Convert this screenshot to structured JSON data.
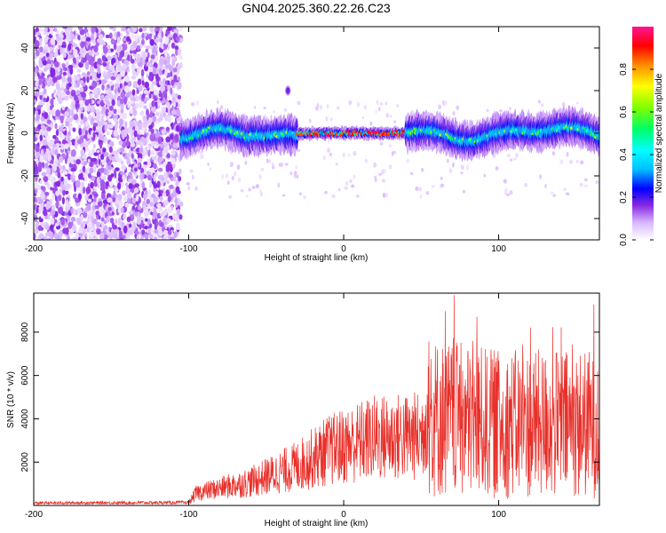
{
  "title": "GN04.2025.360.22.26.C23",
  "chart_data": [
    {
      "type": "heatmap",
      "xlabel": "Height of straight line (km)",
      "ylabel": "Frequency (Hz)",
      "xlim": [
        -200,
        165
      ],
      "ylim": [
        -50,
        50
      ],
      "xticks": [
        -200,
        -100,
        0,
        100
      ],
      "yticks": [
        -40,
        -20,
        0,
        20,
        40
      ],
      "colorbar": {
        "label": "Normalized spectral amplitude",
        "range": [
          0.0,
          1.0
        ],
        "ticks": [
          0.0,
          0.2,
          0.4,
          0.6,
          0.8
        ],
        "tick_labels": [
          "0.0",
          "0.2",
          "0.4",
          "0.6",
          "0.8"
        ],
        "stops": [
          "#ffffff",
          "#d9b8ff",
          "#8a2be2",
          "#0000ff",
          "#00bfff",
          "#00ffff",
          "#00ff66",
          "#7fff00",
          "#ffff00",
          "#ff8c00",
          "#ff0000",
          "#ff1493"
        ]
      },
      "regions": [
        {
          "description": "broadband noise",
          "x_range": [
            -200,
            -105
          ],
          "freq_range": [
            -50,
            50
          ],
          "amplitude": 0.15
        },
        {
          "description": "signal band",
          "x_range": [
            -105,
            165
          ],
          "freq_center": 0,
          "freq_halfwidth": 5,
          "amplitude_peak": 0.95,
          "strong_x_range": [
            -30,
            40
          ]
        }
      ],
      "grid": false
    },
    {
      "type": "line",
      "xlabel": "Height of straight line (km)",
      "ylabel": "SNR (10 * v/v)",
      "xlim": [
        -200,
        165
      ],
      "ylim": [
        0,
        9800
      ],
      "xticks": [
        -200,
        -100,
        0,
        100
      ],
      "yticks": [
        2000,
        4000,
        6000,
        8000
      ],
      "color": "#e8302a",
      "envelope": [
        {
          "x": -200,
          "y": 150
        },
        {
          "x": -100,
          "y": 180
        },
        {
          "x": -95,
          "y": 800
        },
        {
          "x": -60,
          "y": 1500
        },
        {
          "x": -30,
          "y": 2500
        },
        {
          "x": -10,
          "y": 3500
        },
        {
          "x": 20,
          "y": 4300
        },
        {
          "x": 50,
          "y": 4400
        },
        {
          "x": 55,
          "y": 6500
        },
        {
          "x": 100,
          "y": 6000
        },
        {
          "x": 165,
          "y": 6000
        }
      ],
      "grid": false
    }
  ]
}
